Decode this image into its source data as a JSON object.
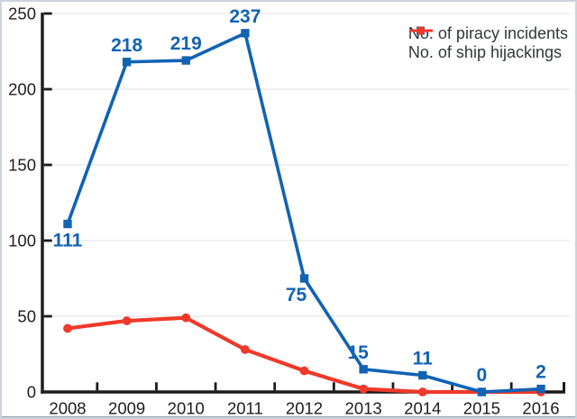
{
  "chart_data": {
    "type": "line",
    "x": [
      2008,
      2009,
      2010,
      2011,
      2012,
      2013,
      2014,
      2015,
      2016
    ],
    "series": [
      {
        "id": "piracy-incidents",
        "name": "No. of piracy incidents",
        "color": "#1163b4",
        "marker": "square",
        "values": [
          111,
          218,
          219,
          237,
          75,
          15,
          11,
          0,
          2
        ],
        "point_labels": {
          "texts": [
            "111",
            "218",
            "219",
            "237",
            "75",
            "15",
            "11",
            "0",
            "2"
          ],
          "positions": [
            "below",
            "above",
            "above",
            "above",
            "below",
            "above",
            "above",
            "above",
            "above"
          ],
          "dx": [
            0,
            0,
            0,
            0,
            -9,
            -6,
            0,
            0,
            0
          ]
        }
      },
      {
        "id": "ship-hijackings",
        "name": "No. of ship hijackings",
        "color": "#ef392a",
        "marker": "circle",
        "values": [
          42,
          47,
          49,
          28,
          14,
          2,
          0,
          0,
          0
        ]
      }
    ],
    "ylim": [
      0,
      250
    ],
    "yticks": [
      0,
      50,
      100,
      150,
      200,
      250
    ],
    "grid": "horizontal",
    "legend_position": "top-right",
    "colors": {
      "axis": "#1b1b1b",
      "grid": "#e6e6e8",
      "tick_label": "#1e1e1e",
      "legend_text": "#32373c",
      "data_label": "#1163b4"
    }
  }
}
